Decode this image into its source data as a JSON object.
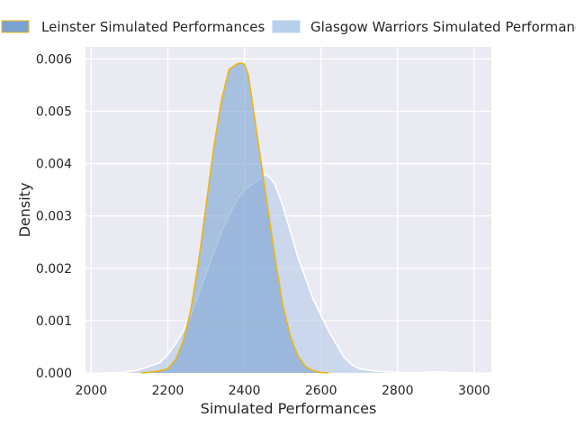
{
  "chart_data": {
    "type": "area",
    "title": "",
    "xlabel": "Simulated Performances",
    "ylabel": "Density",
    "xlim": [
      1985,
      3045
    ],
    "ylim": [
      0,
      0.00623
    ],
    "x_ticks": [
      2000,
      2200,
      2400,
      2600,
      2800,
      3000
    ],
    "y_ticks": [
      0.0,
      0.001,
      0.002,
      0.003,
      0.004,
      0.005,
      0.006
    ],
    "grid": true,
    "legend_position": "top",
    "series": [
      {
        "name": "Leinster Simulated Performances",
        "fill": "#7ba3d2",
        "fill_opacity": 0.6,
        "stroke": "#ebb50e",
        "legend_swatch": "#7ba3d2",
        "legend_edge": "#ebb50e",
        "x": [
          2130,
          2160,
          2180,
          2200,
          2220,
          2240,
          2260,
          2280,
          2300,
          2320,
          2340,
          2360,
          2380,
          2390,
          2400,
          2410,
          2420,
          2440,
          2460,
          2480,
          2500,
          2520,
          2540,
          2560,
          2580,
          2600,
          2620
        ],
        "y": [
          0,
          2e-05,
          4e-05,
          8e-05,
          0.00025,
          0.0006,
          0.0012,
          0.0021,
          0.0032,
          0.0043,
          0.0052,
          0.0058,
          0.0059,
          0.00592,
          0.0059,
          0.0057,
          0.0052,
          0.0042,
          0.0032,
          0.0022,
          0.0013,
          0.0007,
          0.00032,
          0.00012,
          4e-05,
          1e-05,
          0
        ]
      },
      {
        "name": "Glasgow Warriors Simulated Performances",
        "fill": "#aec7e8",
        "fill_opacity": 0.55,
        "stroke": "#ffffff",
        "legend_swatch": "#b8d0ec",
        "legend_edge": "#b8d0ec",
        "x": [
          2040,
          2080,
          2120,
          2150,
          2180,
          2200,
          2220,
          2240,
          2260,
          2280,
          2300,
          2320,
          2340,
          2360,
          2380,
          2400,
          2420,
          2440,
          2455,
          2470,
          2480,
          2500,
          2520,
          2540,
          2560,
          2580,
          2600,
          2620,
          2640,
          2660,
          2680,
          2700,
          2750,
          2800,
          2850,
          2900,
          2950,
          3000
        ],
        "y": [
          0,
          1e-05,
          5e-05,
          0.00012,
          0.0002,
          0.00035,
          0.00055,
          0.0008,
          0.0011,
          0.0015,
          0.0019,
          0.0023,
          0.0027,
          0.003,
          0.0033,
          0.0035,
          0.0036,
          0.0037,
          0.0038,
          0.0037,
          0.0036,
          0.0032,
          0.0027,
          0.0022,
          0.0018,
          0.0014,
          0.0011,
          0.0008,
          0.00055,
          0.0003,
          0.00016,
          8e-05,
          3e-05,
          1e-05,
          5e-06,
          2e-05,
          5e-06,
          0
        ]
      }
    ]
  }
}
